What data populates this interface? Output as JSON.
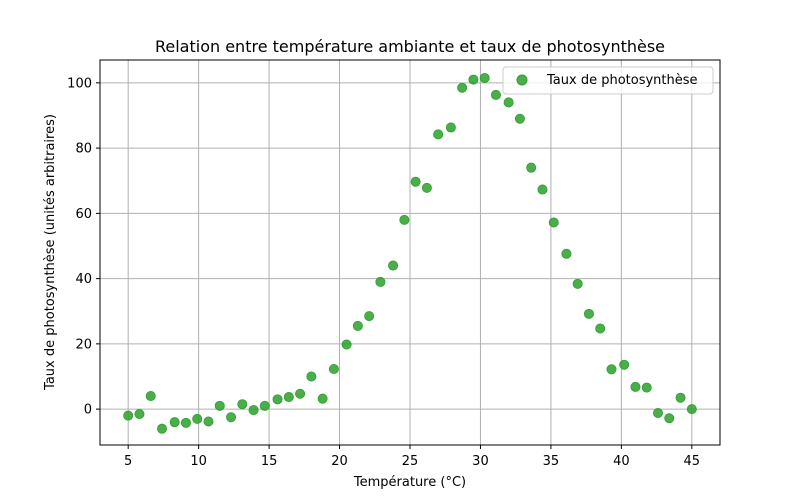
{
  "chart_data": {
    "type": "scatter",
    "title": "Relation entre température ambiante et taux de photosynthèse",
    "xlabel": "Température (°C)",
    "ylabel": "Taux de photosynthèse (unités arbitraires)",
    "xlim": [
      3.0,
      47.0
    ],
    "ylim": [
      -11.0,
      107.0
    ],
    "xticks": [
      5,
      10,
      15,
      20,
      25,
      30,
      35,
      40,
      45
    ],
    "yticks": [
      0,
      20,
      40,
      60,
      80,
      100
    ],
    "grid": true,
    "legend_position": "top-right",
    "marker_color": "#2ca02c",
    "series": [
      {
        "name": "Taux de photosynthèse",
        "points": [
          [
            5.0,
            -2.0
          ],
          [
            5.8,
            -1.5
          ],
          [
            6.6,
            4.0
          ],
          [
            7.4,
            -6.0
          ],
          [
            8.3,
            -4.0
          ],
          [
            9.1,
            -4.2
          ],
          [
            9.9,
            -3.0
          ],
          [
            10.7,
            -3.8
          ],
          [
            11.5,
            1.0
          ],
          [
            12.3,
            -2.5
          ],
          [
            13.1,
            1.5
          ],
          [
            13.9,
            -0.3
          ],
          [
            14.7,
            1.0
          ],
          [
            15.6,
            3.0
          ],
          [
            16.4,
            3.7
          ],
          [
            17.2,
            4.7
          ],
          [
            18.0,
            10.0
          ],
          [
            18.8,
            3.2
          ],
          [
            19.6,
            12.3
          ],
          [
            20.5,
            19.8
          ],
          [
            21.3,
            25.5
          ],
          [
            22.1,
            28.5
          ],
          [
            22.9,
            39.0
          ],
          [
            23.8,
            44.0
          ],
          [
            24.6,
            58.0
          ],
          [
            25.4,
            69.7
          ],
          [
            26.2,
            67.8
          ],
          [
            27.0,
            84.2
          ],
          [
            27.9,
            86.3
          ],
          [
            28.7,
            98.5
          ],
          [
            29.5,
            101.0
          ],
          [
            30.3,
            101.5
          ],
          [
            31.1,
            96.3
          ],
          [
            32.0,
            94.0
          ],
          [
            32.8,
            89.0
          ],
          [
            33.6,
            74.0
          ],
          [
            34.4,
            67.3
          ],
          [
            35.2,
            57.2
          ],
          [
            36.1,
            47.6
          ],
          [
            36.9,
            38.4
          ],
          [
            37.7,
            29.2
          ],
          [
            38.5,
            24.7
          ],
          [
            39.3,
            12.2
          ],
          [
            40.2,
            13.6
          ],
          [
            41.0,
            6.8
          ],
          [
            41.8,
            6.6
          ],
          [
            42.6,
            -1.2
          ],
          [
            43.4,
            -2.8
          ],
          [
            44.2,
            3.5
          ],
          [
            45.0,
            0.0
          ]
        ]
      }
    ]
  }
}
